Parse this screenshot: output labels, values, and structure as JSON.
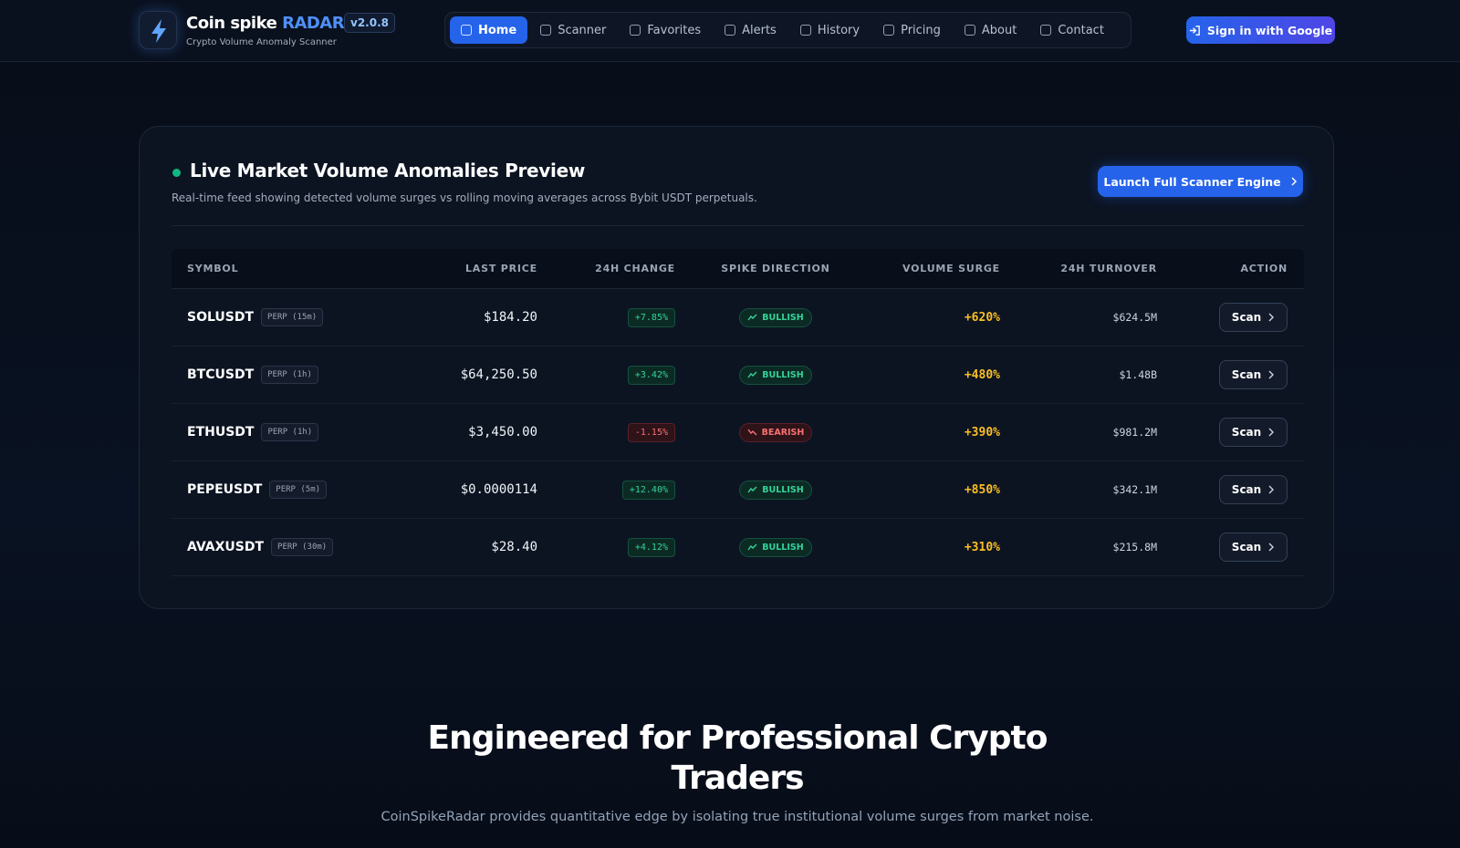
{
  "header": {
    "brand": "Coin spike",
    "brand_accent": "RADAR",
    "version": "v2.0.8",
    "tagline": "Crypto Volume Anomaly Scanner",
    "nav": [
      "Home",
      "Scanner",
      "Favorites",
      "Alerts",
      "History",
      "Pricing",
      "About",
      "Contact"
    ],
    "active_nav": "Home",
    "sign_in": "Sign in with Google"
  },
  "preview": {
    "title": "Live Market Volume Anomalies Preview",
    "description": "Real-time feed showing detected volume surges vs rolling moving averages across Bybit USDT perpetuals.",
    "button": "Launch Full Scanner Engine",
    "table": {
      "columns": [
        "SYMBOL",
        "LAST PRICE",
        "24H CHANGE",
        "SPIKE DIRECTION",
        "VOLUME SURGE",
        "24H TURNOVER",
        "ACTION"
      ],
      "rows": [
        [
          "SOLUSDT",
          "PERP (15m)",
          "$184.20",
          "+7.85%",
          "BULLISH",
          "+620%",
          "$624.5M",
          "Scan"
        ],
        [
          "BTCUSDT",
          "PERP (1h)",
          "$64,250.50",
          "+3.42%",
          "BULLISH",
          "+480%",
          "$1.48B",
          "Scan"
        ],
        [
          "ETHUSDT",
          "PERP (1h)",
          "$3,450.00",
          "-1.15%",
          "BEARISH",
          "+390%",
          "$981.2M",
          "Scan"
        ],
        [
          "PEPEUSDT",
          "PERP (5m)",
          "$0.0000114",
          "+12.40%",
          "BULLISH",
          "+850%",
          "$342.1M",
          "Scan"
        ],
        [
          "AVAXUSDT",
          "PERP (30m)",
          "$28.40",
          "+4.12%",
          "BULLISH",
          "+310%",
          "$215.8M",
          "Scan"
        ]
      ]
    }
  },
  "section": {
    "title": "Engineered for Professional Crypto Traders",
    "subtitle": "CoinSpikeRadar provides quantitative edge by isolating true institutional volume surges from market noise."
  }
}
